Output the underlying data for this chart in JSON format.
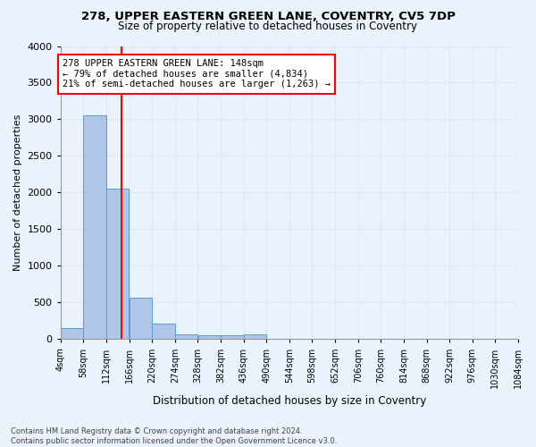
{
  "title": "278, UPPER EASTERN GREEN LANE, COVENTRY, CV5 7DP",
  "subtitle": "Size of property relative to detached houses in Coventry",
  "xlabel": "Distribution of detached houses by size in Coventry",
  "ylabel": "Number of detached properties",
  "footer_line1": "Contains HM Land Registry data © Crown copyright and database right 2024.",
  "footer_line2": "Contains public sector information licensed under the Open Government Licence v3.0.",
  "bin_labels": [
    "4sqm",
    "58sqm",
    "112sqm",
    "166sqm",
    "220sqm",
    "274sqm",
    "328sqm",
    "382sqm",
    "436sqm",
    "490sqm",
    "544sqm",
    "598sqm",
    "652sqm",
    "706sqm",
    "760sqm",
    "814sqm",
    "868sqm",
    "922sqm",
    "976sqm",
    "1030sqm",
    "1084sqm"
  ],
  "bar_heights": [
    150,
    3060,
    2060,
    560,
    215,
    70,
    55,
    50,
    70,
    0,
    0,
    0,
    0,
    0,
    0,
    0,
    0,
    0,
    0,
    0
  ],
  "bar_color": "#aec6e8",
  "bar_edge_color": "#5b9bd5",
  "grid_color": "#dce9f5",
  "background_color": "#eaf2fb",
  "vline_x": 148,
  "vline_color": "red",
  "annotation_text": "278 UPPER EASTERN GREEN LANE: 148sqm\n← 79% of detached houses are smaller (4,834)\n21% of semi-detached houses are larger (1,263) →",
  "annotation_box_color": "white",
  "annotation_box_edge": "red",
  "ylim": [
    0,
    4000
  ],
  "xlim_min": 4,
  "xlim_max": 1084,
  "bin_width": 54
}
